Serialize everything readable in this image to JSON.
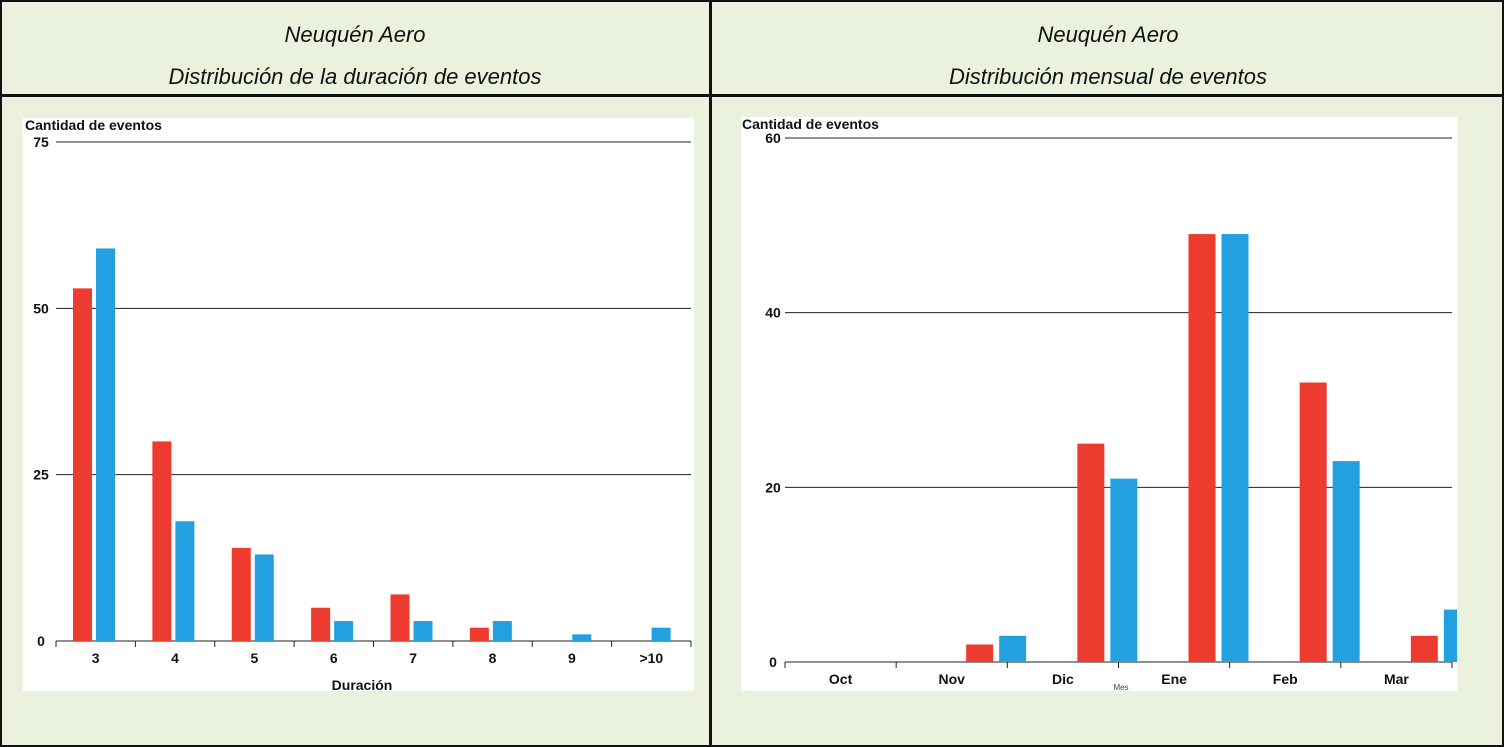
{
  "panels": {
    "left": {
      "station": "Neuquén Aero",
      "subtitle": "Distribución de la duración de eventos"
    },
    "right": {
      "station": "Neuquén Aero",
      "subtitle": "Distribución mensual de eventos"
    }
  },
  "colors": {
    "series_red": "#ee3b2f",
    "series_blue": "#22a0e0"
  },
  "chart_data": [
    {
      "type": "bar",
      "ylabel": "Cantidad de eventos",
      "xlabel": "Duración",
      "categories": [
        "3",
        "4",
        "5",
        "6",
        "7",
        "8",
        "9",
        ">10"
      ],
      "yticks": [
        0,
        25,
        50,
        75
      ],
      "ylim": [
        0,
        75
      ],
      "grid": true,
      "series": [
        {
          "values": [
            53,
            30,
            14,
            5,
            7,
            2,
            0,
            0
          ]
        },
        {
          "values": [
            59,
            18,
            13,
            3,
            3,
            3,
            1,
            2
          ]
        }
      ]
    },
    {
      "type": "bar",
      "ylabel": "Cantidad de eventos",
      "xlabel": "Mes",
      "categories": [
        "Oct",
        "Nov",
        "Dic",
        "Ene",
        "Feb",
        "Mar"
      ],
      "yticks": [
        0,
        20,
        40,
        60
      ],
      "ylim": [
        0,
        60
      ],
      "grid": true,
      "series": [
        {
          "values": [
            0,
            2,
            25,
            49,
            32,
            3
          ]
        },
        {
          "values": [
            0,
            3,
            21,
            49,
            23,
            6
          ]
        }
      ]
    }
  ]
}
